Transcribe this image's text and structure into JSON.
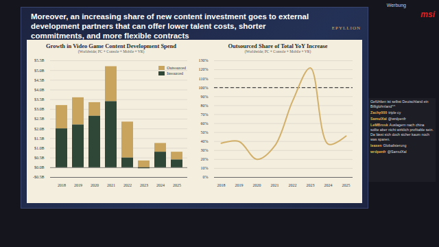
{
  "slide_title": "Moreover, an increasing share of new content investment goes to external development partners that can offer lower talent costs, shorter commitments, and more flexible contracts",
  "logo": "EPYLLION",
  "overlay": {
    "label": "Werbung",
    "brand": "msi"
  },
  "chat": [
    {
      "message": "Gefühlten ist selbst Deutschland ein Billiglohnland^^"
    },
    {
      "user": "Zachy000",
      "message": "triple cy"
    },
    {
      "user": "SamulXal",
      "message": "@wrdpenfr"
    },
    {
      "user": "LeMBrosk",
      "message": "Auslagern nach china sollte aber nicht wirklich profitable sein. Da lässt sich doch sicher kaum noch was sparen."
    },
    {
      "user": "leaxen",
      "message": "Globalisierung"
    },
    {
      "user": "wrdpenfr",
      "message": "@SamulXal"
    }
  ],
  "chart_data": [
    {
      "type": "bar",
      "stacked": true,
      "title": "Growth in Video Game Content Development Spend",
      "subtitle": "(Worldwide; PC + Console + Mobile + VR)",
      "categories": [
        "2018",
        "2019",
        "2020",
        "2021",
        "2022",
        "2023",
        "2024",
        "2025"
      ],
      "series": [
        {
          "name": "Outsourced",
          "color": "#c9a45c",
          "values": [
            1.2,
            1.4,
            0.7,
            1.8,
            1.85,
            0.35,
            0.45,
            0.4
          ]
        },
        {
          "name": "Insourced",
          "color": "#2e4737",
          "values": [
            2.0,
            2.2,
            2.65,
            3.4,
            0.5,
            -0.05,
            0.8,
            0.4
          ]
        }
      ],
      "ylim": [
        -0.5,
        5.5
      ],
      "yticks": [
        {
          "value": -0.5,
          "label": "-$0.5B"
        },
        {
          "value": 0,
          "label": "$0.0B"
        },
        {
          "value": 0.5,
          "label": "$0.5B"
        },
        {
          "value": 1,
          "label": "$1.0B"
        },
        {
          "value": 1.5,
          "label": "$1.5B"
        },
        {
          "value": 2,
          "label": "$2.0B"
        },
        {
          "value": 2.5,
          "label": "$2.5B"
        },
        {
          "value": 3,
          "label": "$3.0B"
        },
        {
          "value": 3.5,
          "label": "$3.5B"
        },
        {
          "value": 4,
          "label": "$4.0B"
        },
        {
          "value": 4.5,
          "label": "$4.5B"
        },
        {
          "value": 5,
          "label": "$5.0B"
        },
        {
          "value": 5.5,
          "label": "$5.5B"
        }
      ],
      "grid": true,
      "legend": "top-right"
    },
    {
      "type": "line",
      "title": "Outsourced Share of Total YoY Increase",
      "subtitle": "(Worldwide; PC + Console + Mobile + VR)",
      "categories": [
        "2018",
        "2019",
        "2020",
        "2021",
        "2022",
        "2023",
        "2024",
        "2025"
      ],
      "values": [
        38,
        40,
        20,
        35,
        85,
        122,
        37,
        46
      ],
      "color": "#d2b06a",
      "line_style": "solid",
      "reference_lines": [
        {
          "value": 100,
          "line_style": "dashed"
        }
      ],
      "ylim": [
        0,
        130
      ],
      "yticks": [
        {
          "value": 0,
          "label": "0%"
        },
        {
          "value": 10,
          "label": "10%"
        },
        {
          "value": 20,
          "label": "20%"
        },
        {
          "value": 30,
          "label": "30%"
        },
        {
          "value": 40,
          "label": "40%"
        },
        {
          "value": 50,
          "label": "50%"
        },
        {
          "value": 60,
          "label": "60%"
        },
        {
          "value": 70,
          "label": "70%"
        },
        {
          "value": 80,
          "label": "80%"
        },
        {
          "value": 90,
          "label": "90%"
        },
        {
          "value": 100,
          "label": "100%"
        },
        {
          "value": 110,
          "label": "110%"
        },
        {
          "value": 120,
          "label": "120%"
        },
        {
          "value": 130,
          "label": "130%"
        }
      ],
      "grid": true
    }
  ]
}
